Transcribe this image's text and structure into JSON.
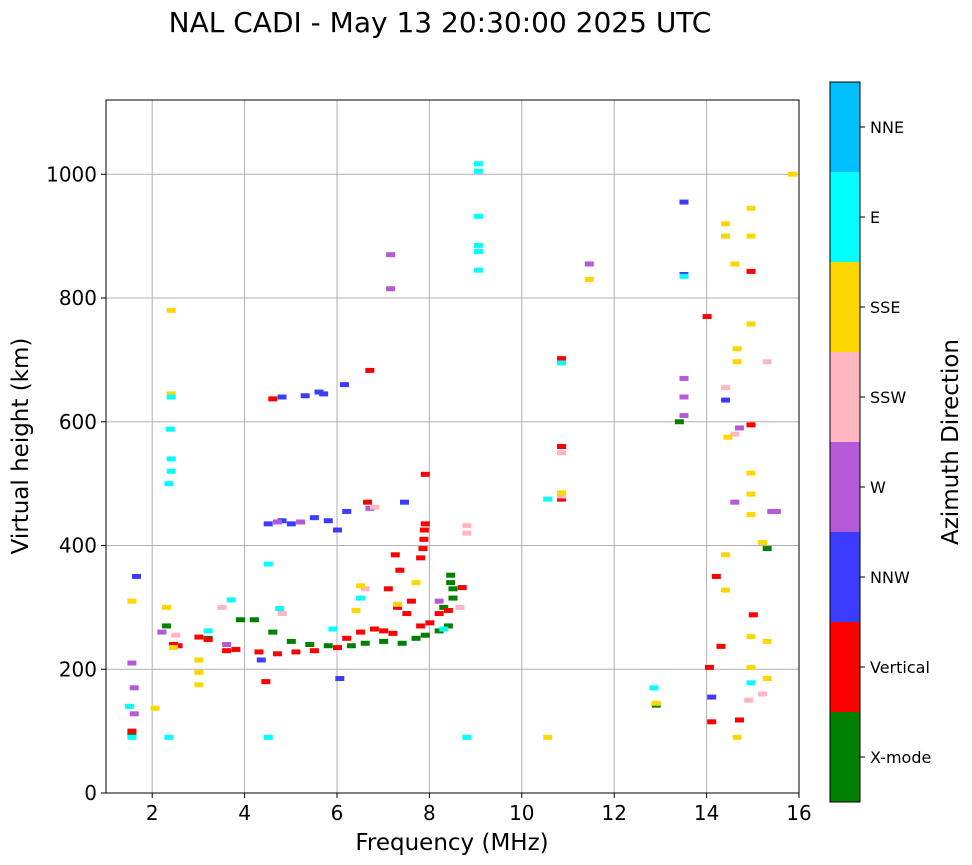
{
  "chart_data": {
    "type": "scatter",
    "title": "NAL CADI - May 13 20:30:00 2025 UTC",
    "xlabel": "Frequency (MHz)",
    "ylabel": "Virtual height (km)",
    "xlim": [
      1,
      16
    ],
    "ylim": [
      0,
      1120
    ],
    "xticks": [
      2,
      4,
      6,
      8,
      10,
      12,
      14,
      16
    ],
    "yticks": [
      0,
      200,
      400,
      600,
      800,
      1000
    ],
    "grid": true,
    "colorbar": {
      "label": "Azimuth Direction",
      "categories": [
        {
          "name": "X-mode",
          "color": "#008000"
        },
        {
          "name": "Vertical",
          "color": "#ff0000"
        },
        {
          "name": "NNW",
          "color": "#3c3cff"
        },
        {
          "name": "W",
          "color": "#b45ad8"
        },
        {
          "name": "SSW",
          "color": "#ffb6c1"
        },
        {
          "name": "SSE",
          "color": "#ffd700"
        },
        {
          "name": "E",
          "color": "#00ffff"
        },
        {
          "name": "NNE",
          "color": "#00bfff"
        }
      ]
    },
    "series": [
      {
        "name": "X-mode",
        "points": [
          [
            1.55,
            95
          ],
          [
            2.3,
            270
          ],
          [
            3.2,
            250
          ],
          [
            3.9,
            280
          ],
          [
            4.2,
            280
          ],
          [
            4.6,
            260
          ],
          [
            5.0,
            245
          ],
          [
            5.4,
            240
          ],
          [
            5.8,
            238
          ],
          [
            6.3,
            238
          ],
          [
            6.6,
            242
          ],
          [
            7.0,
            245
          ],
          [
            7.4,
            242
          ],
          [
            7.7,
            250
          ],
          [
            7.9,
            255
          ],
          [
            8.2,
            262
          ],
          [
            8.4,
            270
          ],
          [
            8.45,
            352
          ],
          [
            8.45,
            340
          ],
          [
            8.5,
            330
          ],
          [
            8.5,
            315
          ],
          [
            8.3,
            300
          ],
          [
            12.9,
            142
          ],
          [
            13.4,
            600
          ],
          [
            14.7,
            118
          ],
          [
            15.3,
            395
          ]
        ]
      },
      {
        "name": "Vertical",
        "points": [
          [
            1.55,
            100
          ],
          [
            2.45,
            240
          ],
          [
            2.55,
            238
          ],
          [
            3.0,
            252
          ],
          [
            3.2,
            248
          ],
          [
            3.6,
            230
          ],
          [
            3.8,
            232
          ],
          [
            4.3,
            228
          ],
          [
            4.7,
            225
          ],
          [
            5.1,
            228
          ],
          [
            5.5,
            230
          ],
          [
            6.0,
            235
          ],
          [
            6.2,
            250
          ],
          [
            6.5,
            260
          ],
          [
            6.8,
            265
          ],
          [
            7.0,
            262
          ],
          [
            7.2,
            258
          ],
          [
            7.3,
            300
          ],
          [
            7.1,
            330
          ],
          [
            7.35,
            360
          ],
          [
            7.25,
            385
          ],
          [
            7.5,
            290
          ],
          [
            7.6,
            310
          ],
          [
            7.8,
            380
          ],
          [
            7.85,
            395
          ],
          [
            7.87,
            410
          ],
          [
            7.88,
            425
          ],
          [
            7.9,
            435
          ],
          [
            7.8,
            270
          ],
          [
            8.0,
            275
          ],
          [
            8.2,
            290
          ],
          [
            8.4,
            295
          ],
          [
            8.7,
            332
          ],
          [
            4.45,
            180
          ],
          [
            6.65,
            470
          ],
          [
            6.7,
            683
          ],
          [
            7.9,
            515
          ],
          [
            4.6,
            637
          ],
          [
            10.85,
            475
          ],
          [
            10.85,
            560
          ],
          [
            10.85,
            702
          ],
          [
            14.0,
            770
          ],
          [
            14.2,
            350
          ],
          [
            14.3,
            237
          ],
          [
            14.05,
            203
          ],
          [
            14.1,
            115
          ],
          [
            14.7,
            118
          ],
          [
            14.95,
            595
          ],
          [
            14.95,
            843
          ],
          [
            15.0,
            288
          ]
        ]
      },
      {
        "name": "NNW",
        "points": [
          [
            1.65,
            350
          ],
          [
            4.35,
            215
          ],
          [
            4.5,
            435
          ],
          [
            4.8,
            440
          ],
          [
            5.0,
            435
          ],
          [
            5.5,
            445
          ],
          [
            5.7,
            645
          ],
          [
            5.8,
            440
          ],
          [
            6.0,
            425
          ],
          [
            6.15,
            660
          ],
          [
            6.2,
            455
          ],
          [
            4.8,
            640
          ],
          [
            5.3,
            642
          ],
          [
            5.6,
            648
          ],
          [
            7.45,
            470
          ],
          [
            6.05,
            185
          ],
          [
            14.1,
            155
          ],
          [
            14.4,
            635
          ],
          [
            13.5,
            955
          ],
          [
            13.5,
            838
          ]
        ]
      },
      {
        "name": "W",
        "points": [
          [
            1.6,
            170
          ],
          [
            1.6,
            128
          ],
          [
            1.55,
            210
          ],
          [
            2.2,
            260
          ],
          [
            3.6,
            240
          ],
          [
            4.7,
            438
          ],
          [
            5.2,
            438
          ],
          [
            6.7,
            460
          ],
          [
            7.15,
            815
          ],
          [
            7.15,
            870
          ],
          [
            8.2,
            310
          ],
          [
            11.45,
            855
          ],
          [
            13.5,
            670
          ],
          [
            13.5,
            640
          ],
          [
            13.5,
            610
          ],
          [
            14.6,
            470
          ],
          [
            14.7,
            590
          ],
          [
            15.4,
            455
          ],
          [
            15.5,
            455
          ]
        ]
      },
      {
        "name": "SSW",
        "points": [
          [
            2.5,
            255
          ],
          [
            3.5,
            300
          ],
          [
            4.8,
            290
          ],
          [
            6.6,
            330
          ],
          [
            6.8,
            462
          ],
          [
            8.8,
            420
          ],
          [
            8.8,
            432
          ],
          [
            8.65,
            300
          ],
          [
            10.85,
            480
          ],
          [
            10.85,
            550
          ],
          [
            14.4,
            655
          ],
          [
            14.6,
            580
          ],
          [
            14.9,
            150
          ],
          [
            15.2,
            160
          ],
          [
            15.3,
            697
          ]
        ]
      },
      {
        "name": "SSE",
        "points": [
          [
            1.55,
            310
          ],
          [
            2.05,
            137
          ],
          [
            2.4,
            780
          ],
          [
            2.4,
            645
          ],
          [
            2.3,
            300
          ],
          [
            2.45,
            235
          ],
          [
            3.0,
            215
          ],
          [
            3.0,
            175
          ],
          [
            3.0,
            195
          ],
          [
            6.4,
            295
          ],
          [
            6.5,
            335
          ],
          [
            7.7,
            340
          ],
          [
            7.3,
            305
          ],
          [
            10.55,
            90
          ],
          [
            10.85,
            485
          ],
          [
            11.45,
            830
          ],
          [
            14.4,
            920
          ],
          [
            14.4,
            900
          ],
          [
            14.45,
            575
          ],
          [
            14.4,
            385
          ],
          [
            14.4,
            328
          ],
          [
            14.6,
            855
          ],
          [
            14.65,
            718
          ],
          [
            14.65,
            697
          ],
          [
            14.65,
            90
          ],
          [
            14.95,
            945
          ],
          [
            14.95,
            900
          ],
          [
            14.95,
            758
          ],
          [
            14.95,
            517
          ],
          [
            14.95,
            483
          ],
          [
            14.95,
            450
          ],
          [
            14.95,
            253
          ],
          [
            14.95,
            203
          ],
          [
            15.2,
            405
          ],
          [
            15.3,
            245
          ],
          [
            15.3,
            185
          ],
          [
            15.85,
            1000
          ],
          [
            12.9,
            145
          ]
        ]
      },
      {
        "name": "E",
        "points": [
          [
            1.5,
            140
          ],
          [
            1.55,
            90
          ],
          [
            2.35,
            90
          ],
          [
            2.4,
            540
          ],
          [
            2.4,
            520
          ],
          [
            2.35,
            500
          ],
          [
            2.38,
            588
          ],
          [
            2.4,
            640
          ],
          [
            3.7,
            312
          ],
          [
            3.2,
            262
          ],
          [
            4.5,
            90
          ],
          [
            4.5,
            370
          ],
          [
            4.75,
            298
          ],
          [
            5.9,
            265
          ],
          [
            6.5,
            315
          ],
          [
            8.3,
            265
          ],
          [
            8.8,
            90
          ],
          [
            9.05,
            1017
          ],
          [
            9.05,
            1005
          ],
          [
            9.05,
            932
          ],
          [
            9.05,
            885
          ],
          [
            9.05,
            875
          ],
          [
            9.05,
            845
          ],
          [
            10.55,
            475
          ],
          [
            10.85,
            695
          ],
          [
            12.85,
            170
          ],
          [
            13.5,
            835
          ],
          [
            14.95,
            178
          ]
        ]
      },
      {
        "name": "NNE",
        "points": []
      }
    ]
  }
}
